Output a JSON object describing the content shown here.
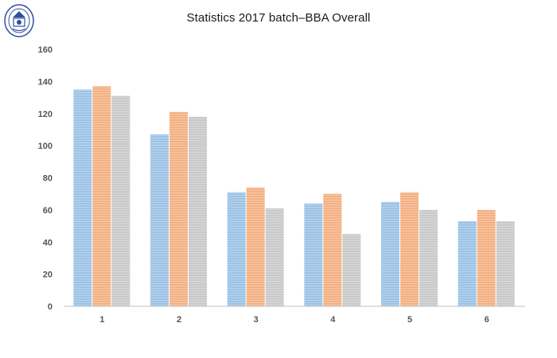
{
  "chart_data": {
    "type": "bar",
    "title": "Statistics 2017 batch–BBA Overall",
    "xlabel": "",
    "ylabel": "",
    "categories": [
      "1",
      "2",
      "3",
      "4",
      "5",
      "6"
    ],
    "series": [
      {
        "color": "#9dc3e6",
        "values": [
          135,
          107,
          71,
          64,
          65,
          53
        ]
      },
      {
        "color": "#f4b183",
        "values": [
          137,
          121,
          74,
          70,
          71,
          60
        ]
      },
      {
        "color": "#c9c9c9",
        "values": [
          131,
          118,
          61,
          45,
          60,
          53
        ]
      }
    ],
    "ylim": [
      0,
      160
    ],
    "yticks": [
      "0",
      "20",
      "40",
      "60",
      "80",
      "100",
      "120",
      "140",
      "160"
    ],
    "grid": false,
    "legend": "none"
  },
  "logo": {
    "icon": "university-seal-icon",
    "color": "#2f4f9f"
  }
}
